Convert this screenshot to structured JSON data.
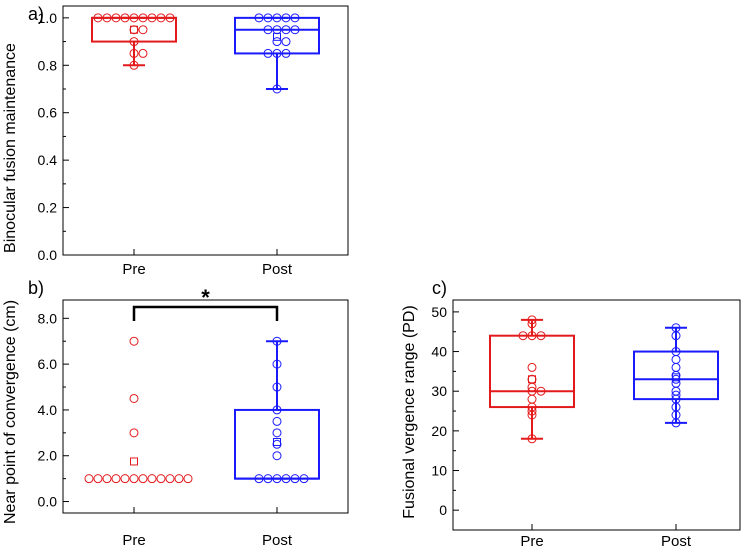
{
  "colors": {
    "pre": "#e31a1c",
    "post": "#1a1aff",
    "axis": "#000000",
    "bracket": "#000000"
  },
  "chart_data": [
    {
      "id": "a",
      "type": "box",
      "panel_label": "a)",
      "ylabel": "Binocular fusion maintenance",
      "ylim": [
        0,
        1.05
      ],
      "yticks": [
        0.0,
        0.2,
        0.4,
        0.6,
        0.8,
        1.0
      ],
      "ytick_labels": [
        "0.0",
        "0.2",
        "0.4",
        "0.6",
        "0.8",
        "1.0"
      ],
      "categories": [
        "Pre",
        "Post"
      ],
      "groups": [
        {
          "name": "Pre",
          "q1": 0.9,
          "median": 1.0,
          "q3": 1.0,
          "mean": 0.95,
          "whisker_low": 0.8,
          "whisker_high": 1.0,
          "points": [
            1.0,
            1.0,
            1.0,
            1.0,
            1.0,
            1.0,
            1.0,
            1.0,
            1.0,
            0.95,
            0.95,
            0.9,
            0.85,
            0.85,
            0.8
          ]
        },
        {
          "name": "Post",
          "q1": 0.85,
          "median": 0.95,
          "q3": 1.0,
          "mean": 0.92,
          "whisker_low": 0.7,
          "whisker_high": 1.0,
          "points": [
            1.0,
            1.0,
            1.0,
            1.0,
            1.0,
            0.95,
            0.95,
            0.95,
            0.95,
            0.9,
            0.9,
            0.85,
            0.85,
            0.85,
            0.7
          ]
        }
      ]
    },
    {
      "id": "b",
      "type": "box",
      "panel_label": "b)",
      "ylabel": "Near point of convergence (cm)",
      "ylim": [
        -0.5,
        8.8
      ],
      "yticks": [
        0,
        2,
        4,
        6,
        8
      ],
      "ytick_labels": [
        "0.0",
        "2.0",
        "4.0",
        "6.0",
        "8.0"
      ],
      "categories": [
        "Pre",
        "Post"
      ],
      "significance": {
        "label": "*",
        "between": [
          "Pre",
          "Post"
        ]
      },
      "groups": [
        {
          "name": "Pre",
          "box": false,
          "mean": 1.75,
          "points": [
            1,
            1,
            1,
            1,
            1,
            1,
            1,
            1,
            1,
            1,
            1,
            1,
            3,
            4.5,
            7
          ]
        },
        {
          "name": "Post",
          "q1": 1.0,
          "median": 1.0,
          "q3": 4.0,
          "mean": 2.6,
          "whisker_low": 1.0,
          "whisker_high": 7.0,
          "points": [
            1,
            1,
            1,
            1,
            1,
            1,
            2,
            2.5,
            3,
            3.5,
            4,
            5,
            6,
            7
          ]
        }
      ]
    },
    {
      "id": "c",
      "type": "box",
      "panel_label": "c)",
      "ylabel": "Fusional vergence range (PD)",
      "ylim": [
        -5,
        53
      ],
      "yticks": [
        0,
        10,
        20,
        30,
        40,
        50
      ],
      "ytick_labels": [
        "0",
        "10",
        "20",
        "30",
        "40",
        "50"
      ],
      "categories": [
        "Pre",
        "Post"
      ],
      "groups": [
        {
          "name": "Pre",
          "q1": 26,
          "median": 30,
          "q3": 44,
          "mean": 33,
          "whisker_low": 18,
          "whisker_high": 48,
          "points": [
            48,
            47,
            44,
            44,
            44,
            36,
            33,
            31,
            30,
            30,
            28,
            26,
            25,
            24,
            18
          ]
        },
        {
          "name": "Post",
          "q1": 28,
          "median": 33,
          "q3": 40,
          "mean": 33.5,
          "whisker_low": 22,
          "whisker_high": 46,
          "points": [
            46,
            44,
            40,
            38,
            36,
            34,
            33,
            32,
            30,
            29,
            28,
            26,
            24,
            22
          ]
        }
      ]
    }
  ]
}
